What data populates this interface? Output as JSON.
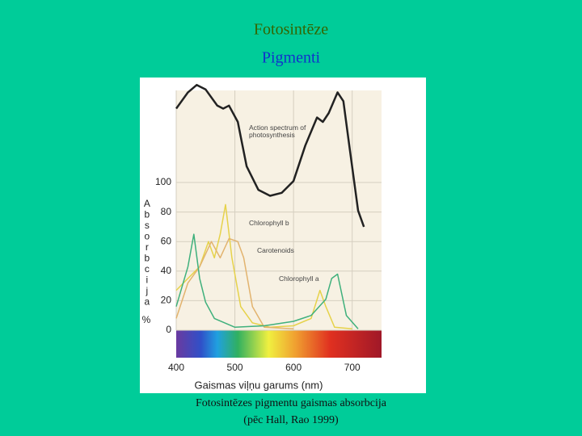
{
  "chart_data": {
    "type": "line",
    "title": "Fotosintēze",
    "subtitle": "Pigmenti",
    "x_label": "Gaismas viļņu garums (nm)",
    "y_label": "Absorbcija",
    "y_unit": "%",
    "caption": [
      "Fotosintēzes pigmentu gaismas absorbcija",
      "(pēc Hall, Rao 1999)"
    ],
    "xlim": [
      400,
      750
    ],
    "xticks": [
      400,
      500,
      600,
      700
    ],
    "ylim": [
      0,
      170
    ],
    "yticks": [
      0,
      20,
      40,
      60,
      80,
      100
    ],
    "grid": true,
    "series": [
      {
        "name": "Action spectrum of photosynthesis",
        "color": "#222222",
        "x": [
          400,
          420,
          435,
          450,
          470,
          480,
          490,
          505,
          510,
          520,
          540,
          560,
          580,
          600,
          620,
          640,
          650,
          660,
          675,
          685,
          695,
          710,
          720
        ],
        "values": [
          150,
          161,
          166,
          163,
          152,
          150,
          152,
          141,
          131,
          111,
          95,
          91,
          93,
          101,
          125,
          144,
          141,
          147,
          161,
          155,
          125,
          81,
          70
        ]
      },
      {
        "name": "Chlorophyll b",
        "color": "#e6d24a",
        "x": [
          400,
          420,
          440,
          455,
          465,
          475,
          484,
          495,
          510,
          530,
          560,
          600,
          630,
          645,
          655,
          670,
          700
        ],
        "values": [
          27,
          35,
          43,
          60,
          49,
          65,
          85,
          49,
          16,
          5,
          2,
          3,
          8,
          27,
          16,
          2,
          1
        ]
      },
      {
        "name": "Carotenoids",
        "color": "#e2b36e",
        "x": [
          400,
          420,
          440,
          460,
          475,
          490,
          505,
          515,
          530,
          550,
          600
        ],
        "values": [
          8,
          32,
          43,
          60,
          49,
          62,
          60,
          49,
          16,
          2,
          1
        ]
      },
      {
        "name": "Chlorophyll a",
        "color": "#3fb07c",
        "x": [
          400,
          420,
          430,
          440,
          450,
          465,
          500,
          550,
          600,
          630,
          655,
          665,
          675,
          690,
          710
        ],
        "values": [
          16,
          43,
          65,
          35,
          19,
          8,
          2,
          3,
          6,
          10,
          21,
          35,
          38,
          10,
          1
        ]
      }
    ]
  }
}
